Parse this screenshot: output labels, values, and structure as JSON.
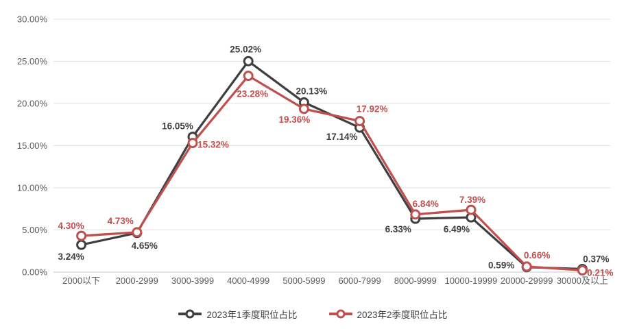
{
  "chart": {
    "type": "line",
    "title": "",
    "categories": [
      "2000以下",
      "2000-2999",
      "3000-3999",
      "4000-4999",
      "5000-5999",
      "6000-7999",
      "8000-9999",
      "10000-19999",
      "20000-29999",
      "30000及以上"
    ],
    "y_axis": {
      "min": 0,
      "max": 30,
      "step": 5,
      "tick_labels": [
        "0.00%",
        "5.00%",
        "10.00%",
        "15.00%",
        "20.00%",
        "25.00%",
        "30.00%"
      ]
    },
    "grid": true,
    "legend_position": "bottom",
    "series": [
      {
        "name": "2023年1季度职位占比",
        "color": "#3f3f3f",
        "values": [
          3.24,
          4.65,
          16.05,
          25.02,
          20.13,
          17.14,
          6.33,
          6.49,
          0.59,
          0.37
        ],
        "labels": [
          "3.24%",
          "4.65%",
          "16.05%",
          "25.02%",
          "20.13%",
          "17.14%",
          "6.33%",
          "6.49%",
          "0.59%",
          "0.37%"
        ],
        "label_offsets": [
          [
            -15,
            22
          ],
          [
            11,
            23
          ],
          [
            -22,
            -11
          ],
          [
            -4,
            -13
          ],
          [
            11,
            -12
          ],
          [
            -26,
            18
          ],
          [
            -25,
            20
          ],
          [
            -21,
            22
          ],
          [
            -37,
            2
          ],
          [
            20,
            -10
          ]
        ]
      },
      {
        "name": "2023年2季度职位占比",
        "color": "#c0504d",
        "values": [
          4.3,
          4.73,
          15.32,
          23.28,
          19.36,
          17.92,
          6.84,
          7.39,
          0.66,
          0.21
        ],
        "labels": [
          "4.30%",
          "4.73%",
          "15.32%",
          "23.28%",
          "19.36%",
          "17.92%",
          "6.84%",
          "7.39%",
          "0.66%",
          "0.21%"
        ],
        "label_offsets": [
          [
            -15,
            -10
          ],
          [
            -24,
            -12
          ],
          [
            30,
            7
          ],
          [
            6,
            31
          ],
          [
            -14,
            20
          ],
          [
            18,
            -13
          ],
          [
            15,
            -11
          ],
          [
            2,
            -10
          ],
          [
            15,
            -12
          ],
          [
            26,
            8
          ]
        ]
      }
    ],
    "colors": {
      "grid": "#e2e2e2",
      "axis_line": "#c6c6c6",
      "tick_text": "#595959",
      "background": "#ffffff"
    }
  }
}
